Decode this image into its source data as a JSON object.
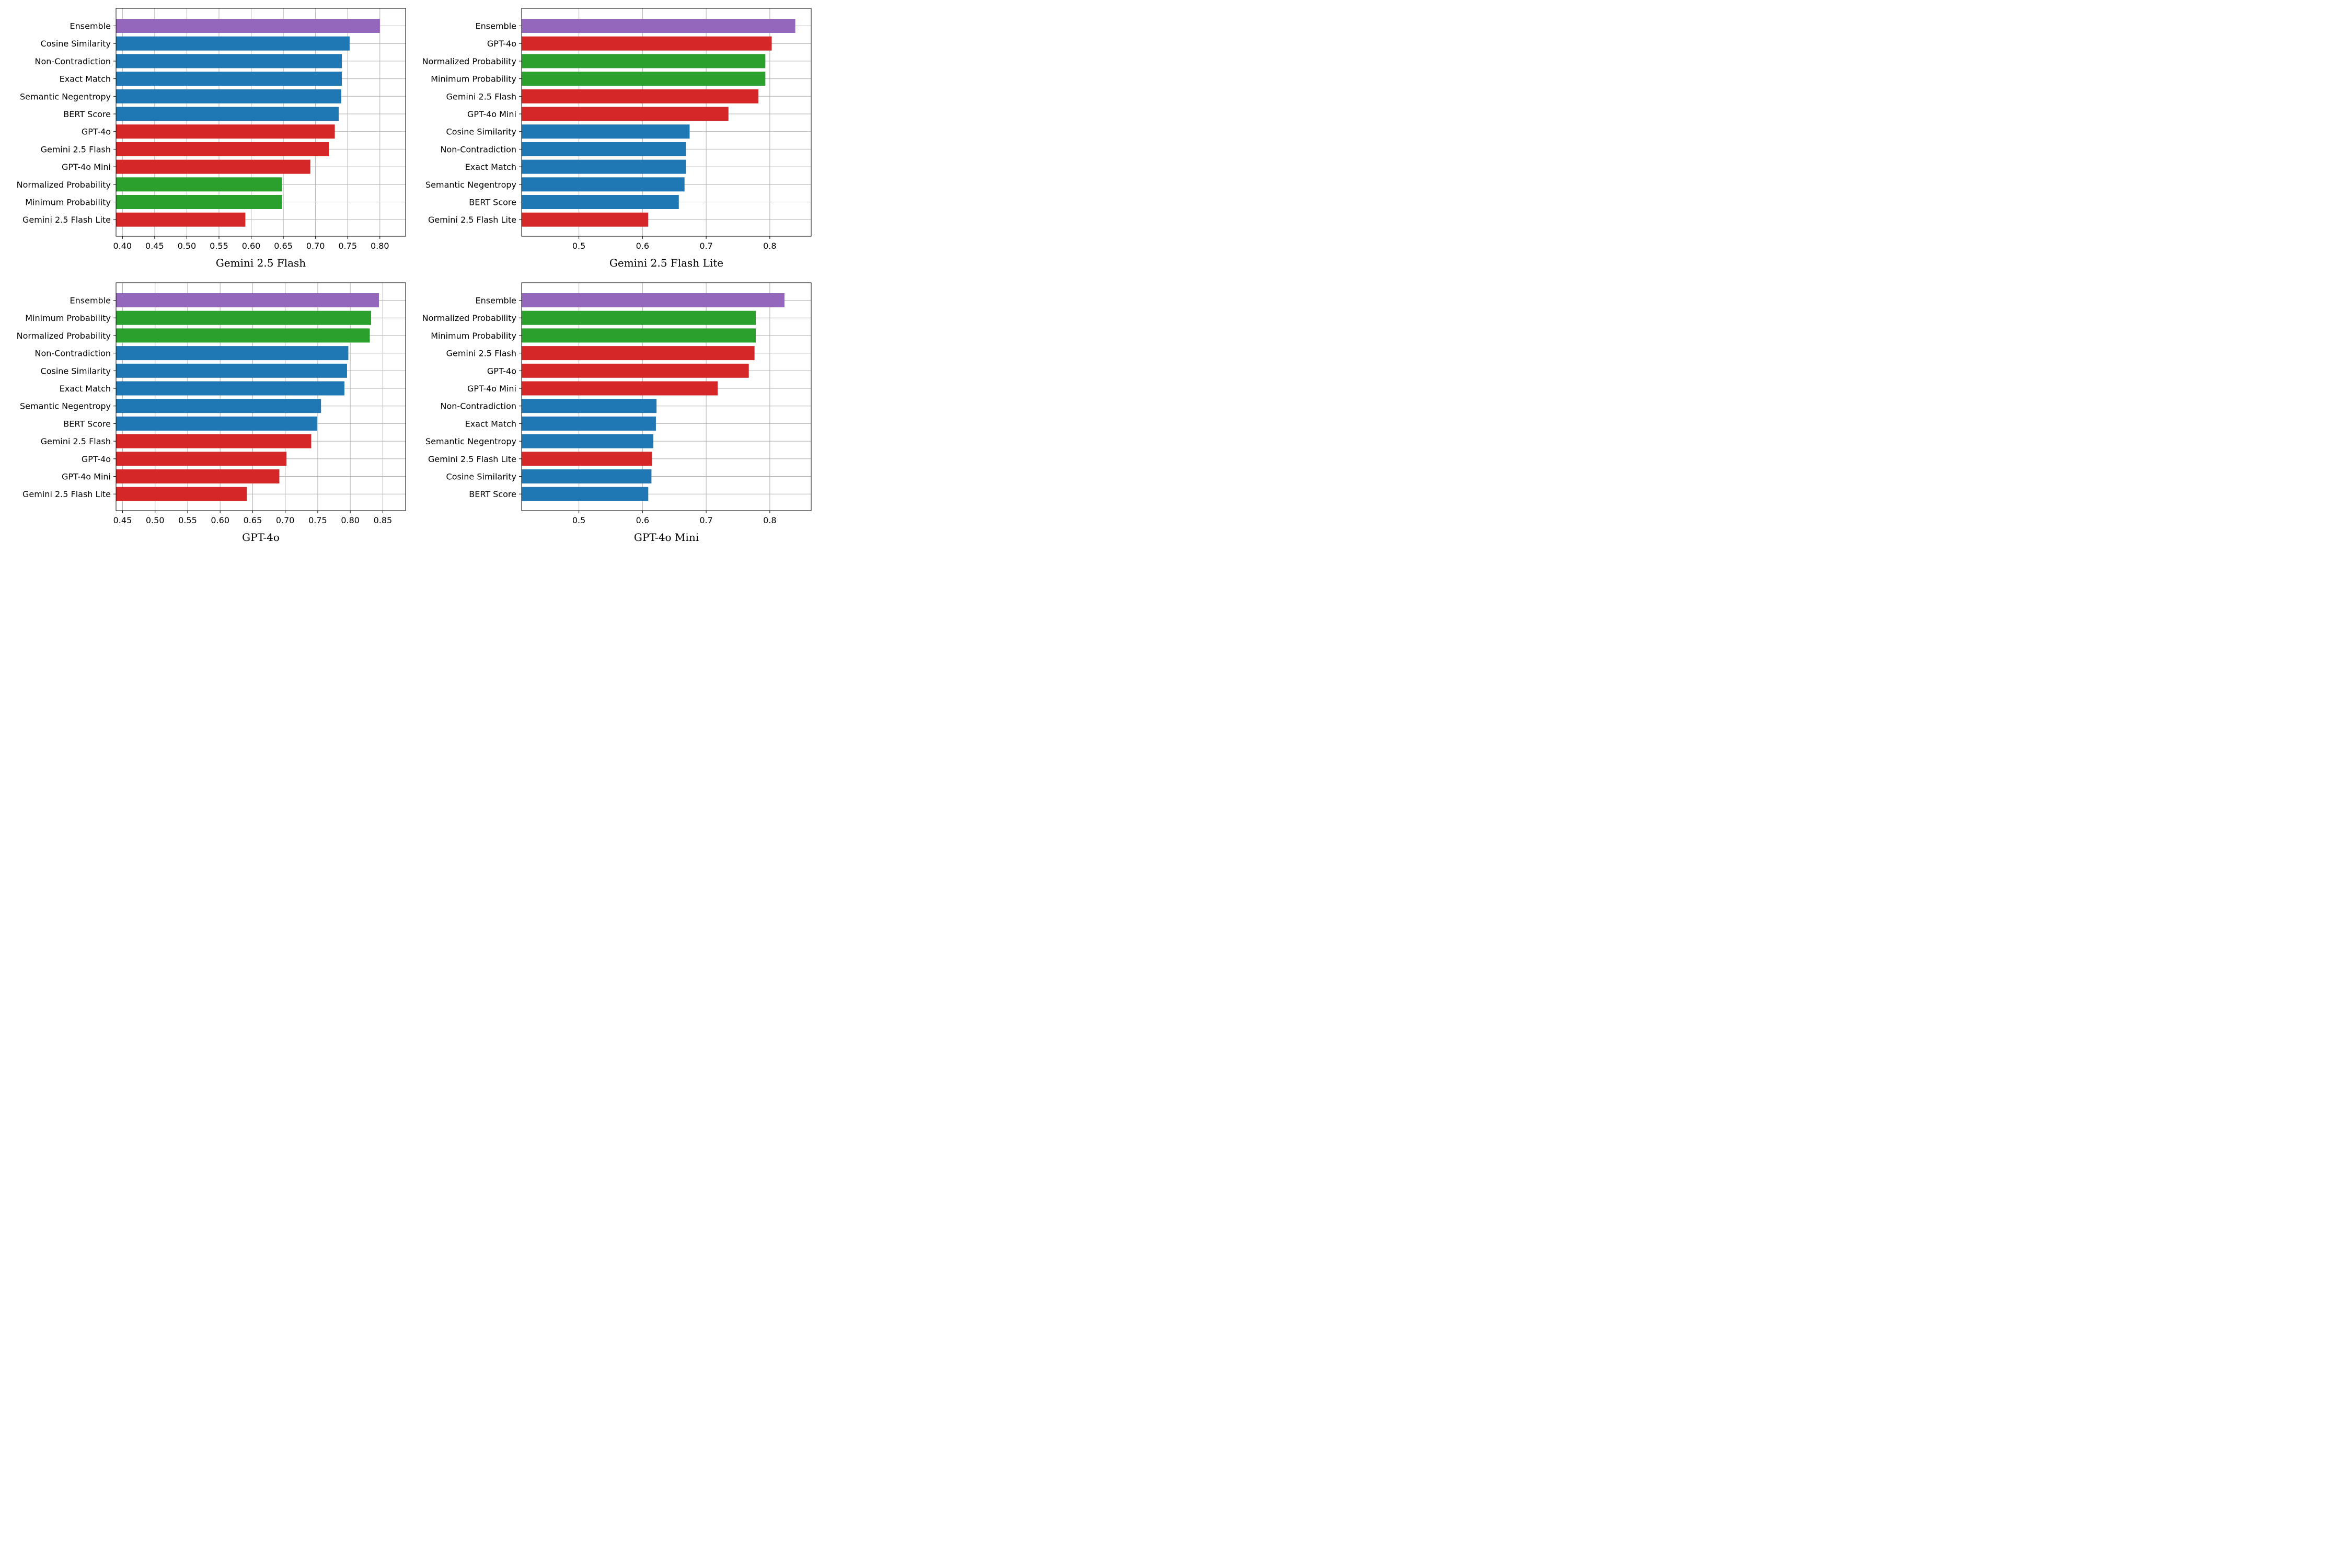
{
  "colors": {
    "Ensemble": "#9467bd",
    "blackbox": "#1f77b4",
    "whitebox": "#2ca02c",
    "judge": "#d62728"
  },
  "chart_data": [
    {
      "type": "bar",
      "orientation": "horizontal",
      "title": "Gemini 2.5 Flash",
      "xlim": [
        0.39,
        0.84
      ],
      "xticks": [
        0.4,
        0.45,
        0.5,
        0.55,
        0.6,
        0.65,
        0.7,
        0.75,
        0.8
      ],
      "xtick_labels": [
        "0.40",
        "0.45",
        "0.50",
        "0.55",
        "0.60",
        "0.65",
        "0.70",
        "0.75",
        "0.80"
      ],
      "categories": [
        "Ensemble",
        "Cosine Similarity",
        "Non-Contradiction",
        "Exact Match",
        "Semantic Negentropy",
        "BERT Score",
        "GPT-4o",
        "Gemini 2.5 Flash",
        "GPT-4o Mini",
        "Normalized Probability",
        "Minimum Probability",
        "Gemini 2.5 Flash Lite"
      ],
      "values": [
        0.8,
        0.753,
        0.741,
        0.741,
        0.74,
        0.736,
        0.73,
        0.721,
        0.692,
        0.648,
        0.648,
        0.591
      ],
      "groups": [
        "Ensemble",
        "blackbox",
        "blackbox",
        "blackbox",
        "blackbox",
        "blackbox",
        "judge",
        "judge",
        "judge",
        "whitebox",
        "whitebox",
        "judge"
      ]
    },
    {
      "type": "bar",
      "orientation": "horizontal",
      "title": "Gemini 2.5 Flash Lite",
      "xlim": [
        0.41,
        0.865
      ],
      "xticks": [
        0.5,
        0.6,
        0.7,
        0.8
      ],
      "xtick_labels": [
        "0.5",
        "0.6",
        "0.7",
        "0.8"
      ],
      "categories": [
        "Ensemble",
        "GPT-4o",
        "Normalized Probability",
        "Minimum Probability",
        "Gemini 2.5 Flash",
        "GPT-4o Mini",
        "Cosine Similarity",
        "Non-Contradiction",
        "Exact Match",
        "Semantic Negentropy",
        "BERT Score",
        "Gemini 2.5 Flash Lite"
      ],
      "values": [
        0.84,
        0.803,
        0.793,
        0.793,
        0.782,
        0.735,
        0.674,
        0.668,
        0.668,
        0.666,
        0.657,
        0.609
      ],
      "groups": [
        "Ensemble",
        "judge",
        "whitebox",
        "whitebox",
        "judge",
        "judge",
        "blackbox",
        "blackbox",
        "blackbox",
        "blackbox",
        "blackbox",
        "judge"
      ]
    },
    {
      "type": "bar",
      "orientation": "horizontal",
      "title": "GPT-4o",
      "xlim": [
        0.44,
        0.885
      ],
      "xticks": [
        0.45,
        0.5,
        0.55,
        0.6,
        0.65,
        0.7,
        0.75,
        0.8,
        0.85
      ],
      "xtick_labels": [
        "0.45",
        "0.50",
        "0.55",
        "0.60",
        "0.65",
        "0.70",
        "0.75",
        "0.80",
        "0.85"
      ],
      "categories": [
        "Ensemble",
        "Minimum Probability",
        "Normalized Probability",
        "Non-Contradiction",
        "Cosine Similarity",
        "Exact Match",
        "Semantic Negentropy",
        "BERT Score",
        "Gemini 2.5 Flash",
        "GPT-4o",
        "GPT-4o Mini",
        "Gemini 2.5 Flash Lite"
      ],
      "values": [
        0.844,
        0.832,
        0.83,
        0.797,
        0.795,
        0.791,
        0.755,
        0.749,
        0.74,
        0.702,
        0.691,
        0.641
      ],
      "groups": [
        "Ensemble",
        "whitebox",
        "whitebox",
        "blackbox",
        "blackbox",
        "blackbox",
        "blackbox",
        "blackbox",
        "judge",
        "judge",
        "judge",
        "judge"
      ]
    },
    {
      "type": "bar",
      "orientation": "horizontal",
      "title": "GPT-4o Mini",
      "xlim": [
        0.41,
        0.865
      ],
      "xticks": [
        0.5,
        0.6,
        0.7,
        0.8
      ],
      "xtick_labels": [
        "0.5",
        "0.6",
        "0.7",
        "0.8"
      ],
      "categories": [
        "Ensemble",
        "Normalized Probability",
        "Minimum Probability",
        "Gemini 2.5 Flash",
        "GPT-4o",
        "GPT-4o Mini",
        "Non-Contradiction",
        "Exact Match",
        "Semantic Negentropy",
        "Gemini 2.5 Flash Lite",
        "Cosine Similarity",
        "BERT Score"
      ],
      "values": [
        0.823,
        0.778,
        0.778,
        0.776,
        0.767,
        0.718,
        0.622,
        0.621,
        0.617,
        0.615,
        0.614,
        0.609
      ],
      "groups": [
        "Ensemble",
        "whitebox",
        "whitebox",
        "judge",
        "judge",
        "judge",
        "blackbox",
        "blackbox",
        "blackbox",
        "judge",
        "blackbox",
        "blackbox"
      ]
    }
  ]
}
